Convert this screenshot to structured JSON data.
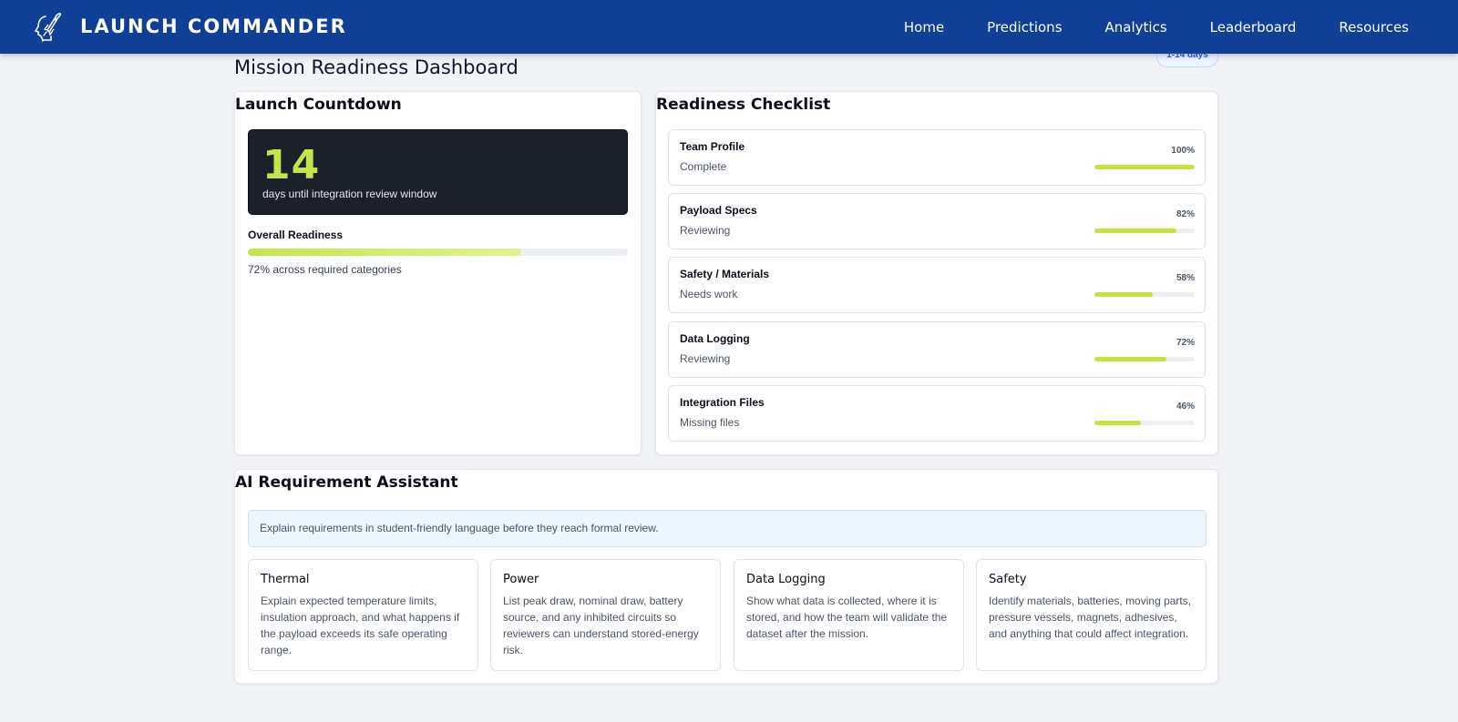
{
  "app": {
    "name": "LAUNCH COMMANDER",
    "logo_icon": "astronaut-rocket-icon"
  },
  "nav": {
    "items": [
      "Home",
      "Predictions",
      "Analytics",
      "Leaderboard",
      "Resources"
    ]
  },
  "page": {
    "title": "Mission Readiness Dashboard",
    "badge": "1-14 days"
  },
  "countdown": {
    "title": "Launch Countdown",
    "days": "14",
    "caption": "days until integration review window",
    "readiness_label": "Overall Readiness",
    "readiness_value": 0.72,
    "readiness_note": "72% across required categories"
  },
  "checklist": {
    "title": "Readiness Checklist",
    "items": [
      {
        "name": "Team Profile",
        "status": "Complete",
        "percent_label": "100%",
        "value": 1.0
      },
      {
        "name": "Payload Specs",
        "status": "Reviewing",
        "percent_label": "82%",
        "value": 0.82
      },
      {
        "name": "Safety / Materials",
        "status": "Needs work",
        "percent_label": "58%",
        "value": 0.58
      },
      {
        "name": "Data Logging",
        "status": "Reviewing",
        "percent_label": "72%",
        "value": 0.72
      },
      {
        "name": "Integration Files",
        "status": "Missing files",
        "percent_label": "46%",
        "value": 0.46
      }
    ]
  },
  "assistant": {
    "title": "AI Requirement Assistant",
    "banner": "Explain requirements in student-friendly language before they reach formal review.",
    "cards": [
      {
        "title": "Thermal",
        "text": "Explain expected temperature limits, insulation approach, and what happens if the payload exceeds its safe operating range."
      },
      {
        "title": "Power",
        "text": "List peak draw, nominal draw, battery source, and any inhibited circuits so reviewers can understand stored-energy risk."
      },
      {
        "title": "Data Logging",
        "text": "Show what data is collected, where it is stored, and how the team will validate the dataset after the mission."
      },
      {
        "title": "Safety",
        "text": "Identify materials, batteries, moving parts, pressure vessels, magnets, adhesives, and anything that could affect integration."
      }
    ]
  },
  "colors": {
    "nav_bg": "#0f3f96",
    "accent": "#c3e33d",
    "countdown_bg": "#1c202b",
    "badge_text": "#2563eb"
  }
}
